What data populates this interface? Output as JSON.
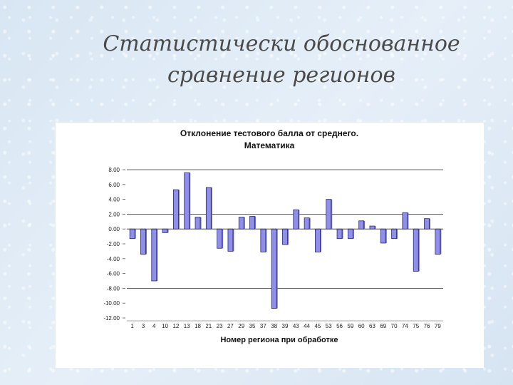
{
  "slide": {
    "title_line1": "Статистически обоснованное",
    "title_line2": "сравнение регионов"
  },
  "colors": {
    "bar_fill": "#8f8fe8",
    "bar_edge": "#2a2a6a",
    "bar_shadow": "#6a6ac0"
  },
  "chart_data": {
    "type": "bar",
    "title_line1": "Отклонение тестового балла от среднего.",
    "title_line2": "Математика",
    "xlabel": "Номер региона при обработке",
    "ylabel": "",
    "ylim": [
      -12,
      8
    ],
    "yticks": [
      8,
      6,
      4,
      2,
      0,
      -2,
      -4,
      -6,
      -8,
      -10,
      -12
    ],
    "ytick_labels": [
      "8.00",
      "6.00",
      "4.00",
      "2.00",
      "0.00",
      "-2.00",
      "-4.00",
      "-6.00",
      "-8.00",
      "-10.00",
      "-12.00"
    ],
    "x_tick_labels": [
      "1",
      "3",
      "4",
      "10",
      "12",
      "13",
      "18",
      "21",
      "23",
      "27",
      "29",
      "35",
      "37",
      "38",
      "39",
      "43",
      "44",
      "45",
      "53",
      "56",
      "59",
      "60",
      "63",
      "69",
      "70",
      "74",
      "75",
      "76",
      "79"
    ],
    "grid": "major horizontal at 8, 2, 0, -8",
    "grid_lines": [
      8,
      2,
      0,
      -8
    ],
    "values": [
      -1.3,
      -3.4,
      -7.0,
      -0.5,
      5.3,
      7.6,
      1.6,
      5.6,
      -2.6,
      -3.0,
      1.6,
      1.7,
      -3.1,
      -10.7,
      -2.1,
      2.6,
      1.5,
      -3.1,
      4.0,
      -1.3,
      -1.3,
      1.1,
      0.4,
      -1.9,
      -1.3,
      2.2,
      -5.7,
      1.4,
      -3.4
    ]
  }
}
